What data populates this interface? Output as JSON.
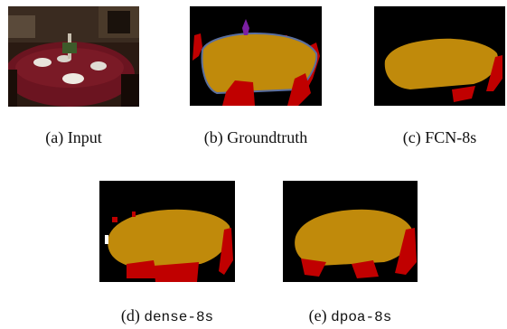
{
  "figure": {
    "panels": [
      {
        "letter": "(a)",
        "caption": "Input",
        "mono": false
      },
      {
        "letter": "(b)",
        "caption": "Groundtruth",
        "mono": false
      },
      {
        "letter": "(c)",
        "caption": "FCN-8s",
        "mono": false
      },
      {
        "letter": "(d)",
        "caption": "dense-8s",
        "mono": true
      },
      {
        "letter": "(e)",
        "caption": "dpoa-8s",
        "mono": true
      }
    ],
    "colors": {
      "background": "#000000",
      "table": "#C08A0B",
      "chair": "#C00000",
      "bottle": "#7B1FA2",
      "boundary": "#5A6FA0"
    }
  }
}
